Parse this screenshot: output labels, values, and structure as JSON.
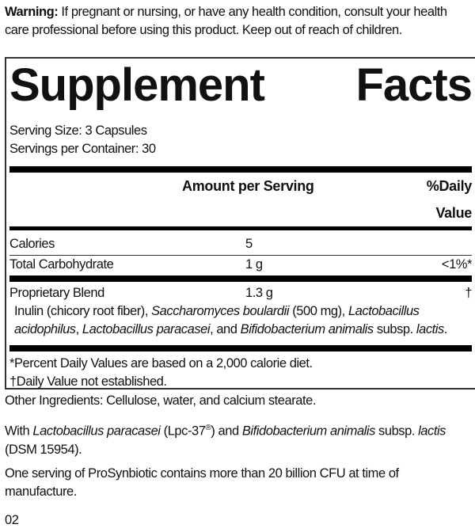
{
  "warning": {
    "label": "Warning:",
    "text": " If pregnant or nursing, or have any health condition, consult your health care professional before using this product. Keep out of reach of children."
  },
  "facts": {
    "title_left": "Supplement",
    "title_right": "Facts",
    "serving_size": "Serving Size: 3 Capsules",
    "servings_per_container": "Servings per Container: 30",
    "header": {
      "amount": "Amount per Serving",
      "dv": "%Daily Value"
    },
    "rows": [
      {
        "name": "Calories",
        "amount": "5",
        "dv": ""
      },
      {
        "name": "Total Carbohydrate",
        "amount": "1 g",
        "dv": "<1%*"
      },
      {
        "name": "Proprietary Blend",
        "amount": "1.3 g",
        "dv": "†"
      }
    ],
    "blend_parts": [
      "Inulin (chicory root fiber), ",
      "Saccharomyces boulardii",
      " (500 mg), ",
      "Lactobacillus acidophilus",
      ", ",
      "Lactobacillus paracasei",
      ", and ",
      "Bifidobacterium animalis",
      " subsp. ",
      "lactis",
      "."
    ],
    "footnote1": "*Percent Daily Values are based on a 2,000 calorie diet.",
    "footnote2": "†Daily Value not established."
  },
  "other_ingredients": "Other Ingredients: Cellulose, water, and calcium stearate.",
  "with_parts": [
    "With ",
    "Lactobacillus paracasei",
    " (Lpc-37",
    "®",
    ") and ",
    "Bifidobacterium animalis",
    " subsp. ",
    "lactis",
    " (DSM 15954)."
  ],
  "cfu_note": "One serving of ProSynbiotic contains more than 20 billion CFU at time of manufacture.",
  "page_code": "02"
}
